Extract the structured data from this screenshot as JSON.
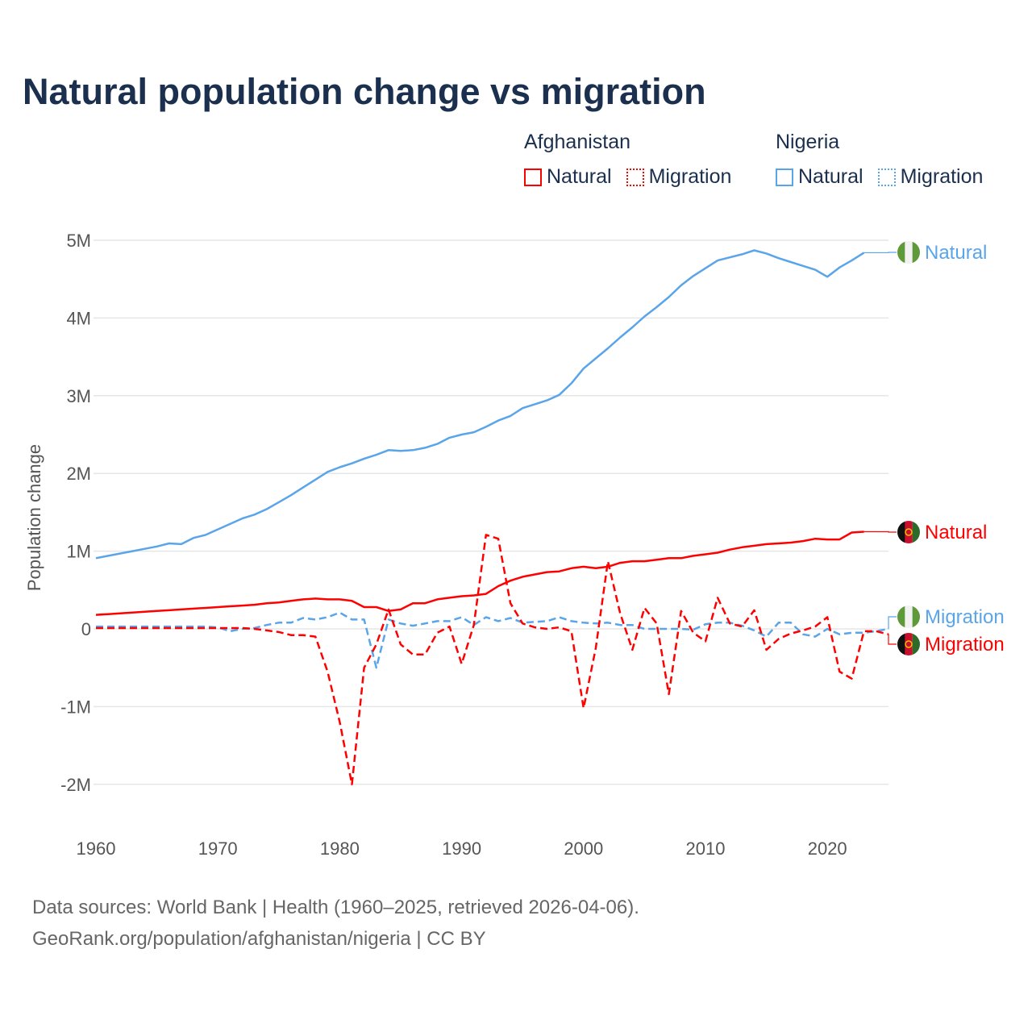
{
  "colors": {
    "afghanistan": "#ff0000",
    "nigeria": "#5aa5ea",
    "title": "#1b2f4e"
  },
  "chart_data": {
    "type": "line",
    "title": "Natural population change vs migration",
    "xlabel": "",
    "ylabel": "Population change",
    "xlim": [
      1960,
      2025
    ],
    "ylim": [
      -2000000,
      5000000
    ],
    "x_ticks": [
      "1960",
      "1970",
      "1980",
      "1990",
      "2000",
      "2010",
      "2020"
    ],
    "y_ticks": [
      {
        "v": 5,
        "label": "5M"
      },
      {
        "v": 4,
        "label": "4M"
      },
      {
        "v": 3,
        "label": "3M"
      },
      {
        "v": 2,
        "label": "2M"
      },
      {
        "v": 1,
        "label": "1M"
      },
      {
        "v": 0,
        "label": "0"
      },
      {
        "v": -1,
        "label": "-1M"
      },
      {
        "v": -2,
        "label": "-2M"
      }
    ],
    "value_units": "millions",
    "start_year": 1960,
    "legend": {
      "groups": [
        {
          "name": "Afghanistan",
          "items": [
            "Natural",
            "Migration"
          ]
        },
        {
          "name": "Nigeria",
          "items": [
            "Natural",
            "Migration"
          ]
        }
      ],
      "placement": "top-right"
    },
    "series": [
      {
        "name": "Nigeria Natural",
        "country": "nigeria",
        "style": "solid",
        "end_label": "Natural",
        "values": [
          0.91,
          0.94,
          0.97,
          1.0,
          1.03,
          1.06,
          1.1,
          1.09,
          1.17,
          1.21,
          1.28,
          1.35,
          1.42,
          1.47,
          1.54,
          1.63,
          1.72,
          1.82,
          1.92,
          2.02,
          2.08,
          2.13,
          2.19,
          2.24,
          2.3,
          2.29,
          2.3,
          2.33,
          2.38,
          2.46,
          2.5,
          2.53,
          2.6,
          2.68,
          2.74,
          2.84,
          2.89,
          2.94,
          3.01,
          3.16,
          3.35,
          3.48,
          3.61,
          3.75,
          3.88,
          4.02,
          4.14,
          4.27,
          4.42,
          4.54,
          4.64,
          4.74,
          4.78,
          4.82,
          4.87,
          4.83,
          4.77,
          4.72,
          4.67,
          4.62,
          4.53,
          4.65,
          4.74,
          4.84
        ]
      },
      {
        "name": "Afghanistan Natural",
        "country": "afghanistan",
        "style": "solid",
        "end_label": "Natural",
        "values": [
          0.18,
          0.19,
          0.2,
          0.21,
          0.22,
          0.23,
          0.24,
          0.25,
          0.26,
          0.27,
          0.28,
          0.29,
          0.3,
          0.31,
          0.33,
          0.34,
          0.36,
          0.38,
          0.39,
          0.38,
          0.38,
          0.36,
          0.28,
          0.28,
          0.23,
          0.25,
          0.33,
          0.33,
          0.38,
          0.4,
          0.42,
          0.43,
          0.45,
          0.55,
          0.62,
          0.67,
          0.7,
          0.73,
          0.74,
          0.78,
          0.8,
          0.78,
          0.8,
          0.85,
          0.87,
          0.87,
          0.89,
          0.91,
          0.91,
          0.94,
          0.96,
          0.98,
          1.02,
          1.05,
          1.07,
          1.09,
          1.1,
          1.11,
          1.13,
          1.16,
          1.15,
          1.15,
          1.24,
          1.25
        ]
      },
      {
        "name": "Nigeria Migration",
        "country": "nigeria",
        "style": "dashed",
        "end_label": "Migration",
        "values": [
          0.03,
          0.03,
          0.03,
          0.03,
          0.03,
          0.03,
          0.03,
          0.03,
          0.03,
          0.03,
          0.02,
          -0.03,
          0.0,
          0.01,
          0.05,
          0.08,
          0.08,
          0.14,
          0.12,
          0.15,
          0.21,
          0.12,
          0.12,
          -0.5,
          0.12,
          0.07,
          0.04,
          0.07,
          0.1,
          0.1,
          0.15,
          0.05,
          0.15,
          0.1,
          0.14,
          0.08,
          0.09,
          0.1,
          0.15,
          0.1,
          0.08,
          0.07,
          0.08,
          0.05,
          0.05,
          0.0,
          0.0,
          0.0,
          0.0,
          -0.01,
          0.06,
          0.08,
          0.08,
          0.04,
          -0.02,
          -0.1,
          0.08,
          0.08,
          -0.07,
          -0.1,
          0.0,
          -0.07,
          -0.05,
          -0.05,
          -0.03,
          0.0
        ]
      },
      {
        "name": "Afghanistan Migration",
        "country": "afghanistan",
        "style": "dashed",
        "end_label": "Migration",
        "values": [
          0.01,
          0.01,
          0.01,
          0.01,
          0.01,
          0.01,
          0.01,
          0.01,
          0.01,
          0.01,
          0.01,
          0.01,
          0.01,
          0.0,
          -0.02,
          -0.04,
          -0.08,
          -0.08,
          -0.1,
          -0.55,
          -1.2,
          -2.0,
          -0.5,
          -0.2,
          0.25,
          -0.2,
          -0.33,
          -0.33,
          -0.05,
          0.03,
          -0.45,
          0.05,
          1.21,
          1.16,
          0.33,
          0.07,
          0.02,
          0.0,
          0.02,
          -0.03,
          -1.02,
          -0.25,
          0.87,
          0.2,
          -0.27,
          0.27,
          0.07,
          -0.84,
          0.23,
          -0.05,
          -0.16,
          0.4,
          0.07,
          0.03,
          0.24,
          -0.27,
          -0.13,
          -0.06,
          -0.02,
          0.03,
          0.15,
          -0.55,
          -0.64,
          -0.03,
          -0.03,
          -0.07
        ]
      }
    ]
  },
  "source": {
    "line1": "Data sources: World Bank | Health (1960–2025, retrieved 2026-04-06).",
    "line2": "GeoRank.org/population/afghanistan/nigeria | CC BY"
  }
}
